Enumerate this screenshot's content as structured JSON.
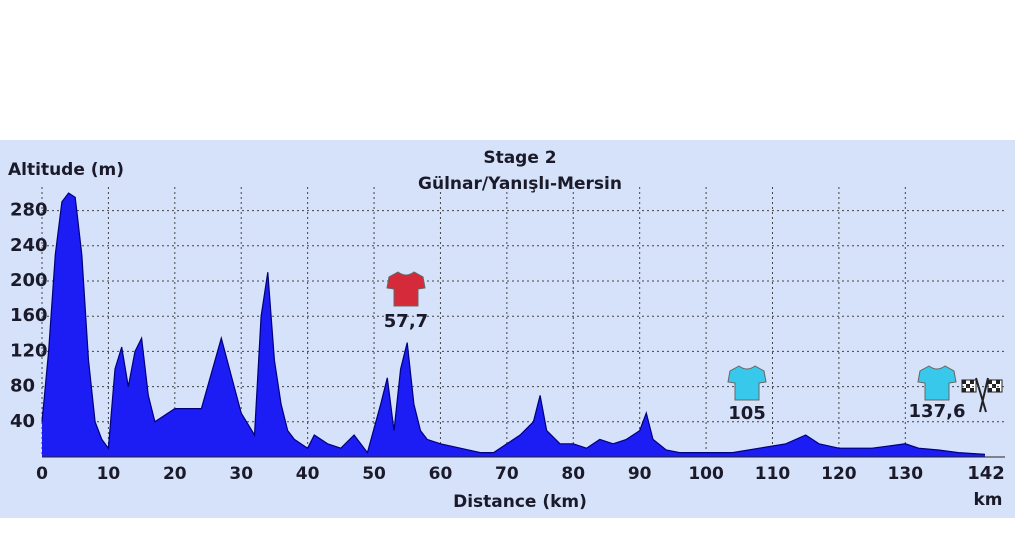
{
  "chart_data": {
    "type": "area",
    "title": "Stage 2",
    "subtitle": "Gülnar/Yanışlı-Mersin",
    "y_label": "Altitude (m)",
    "x_label": "Distance (km)",
    "finish_distance": "142",
    "finish_unit": "km",
    "x": [
      0,
      1,
      2,
      3,
      4,
      5,
      6,
      7,
      8,
      9,
      10,
      11,
      12,
      13,
      14,
      15,
      16,
      17,
      20,
      24,
      27,
      30,
      32,
      33,
      34,
      35,
      36,
      37,
      38,
      40,
      41,
      43,
      45,
      47,
      49,
      51,
      52,
      53,
      54,
      55,
      56,
      57,
      58,
      60,
      63,
      66,
      68,
      70,
      72,
      74,
      75,
      76,
      78,
      80,
      82,
      84,
      86,
      88,
      90,
      91,
      92,
      94,
      96,
      100,
      104,
      108,
      112,
      115,
      117,
      120,
      125,
      130,
      132,
      135,
      138,
      142
    ],
    "values": [
      40,
      120,
      230,
      290,
      300,
      295,
      230,
      110,
      40,
      20,
      10,
      100,
      125,
      80,
      120,
      135,
      70,
      40,
      55,
      55,
      135,
      50,
      25,
      160,
      210,
      110,
      60,
      30,
      20,
      10,
      25,
      15,
      10,
      25,
      5,
      60,
      90,
      30,
      100,
      130,
      60,
      30,
      20,
      15,
      10,
      5,
      5,
      15,
      25,
      40,
      70,
      30,
      15,
      15,
      10,
      20,
      15,
      20,
      30,
      50,
      20,
      8,
      5,
      5,
      5,
      10,
      15,
      25,
      15,
      10,
      10,
      15,
      10,
      8,
      5,
      3
    ],
    "color": "#1c1cf5",
    "xlim": [
      0,
      142
    ],
    "ylim": [
      0,
      300
    ],
    "xticks": [
      0,
      10,
      20,
      30,
      40,
      50,
      60,
      70,
      80,
      90,
      100,
      110,
      120,
      130
    ],
    "yticks": [
      40,
      80,
      120,
      160,
      200,
      240,
      280
    ],
    "grid": true,
    "markers": [
      {
        "label": "57,7",
        "color": "#d42a3a"
      },
      {
        "label": "105",
        "color": "#38c8ec"
      },
      {
        "label": "137,6",
        "color": "#38c8ec"
      }
    ]
  }
}
